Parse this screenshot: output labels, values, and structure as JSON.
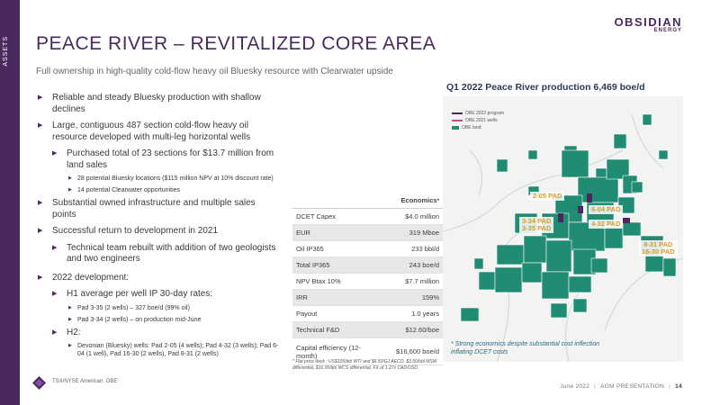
{
  "sidebar": {
    "label": "ASSETS"
  },
  "logo": {
    "main": "OBSIDIAN",
    "sub": "ENERGY"
  },
  "title": "PEACE RIVER – REVITALIZED CORE AREA",
  "subtitle": "Full ownership in high-quality cold-flow heavy oil Bluesky resource with Clearwater upside",
  "bullets": {
    "b1": "Reliable and steady Bluesky production with shallow declines",
    "b2": "Large, contiguous 487 section cold-flow heavy oil resource developed with multi-leg horizontal wells",
    "b2_1": "Purchased total of 23 sections for $13.7 million from land sales",
    "b2_1_1": "28 potential Bluesky locations ($115 million NPV at 10% discount rate)",
    "b2_1_2": "14 potential Clearwater opportunities",
    "b3": "Substantial owned infrastructure and multiple sales points",
    "b4": "Successful return to development in 2021",
    "b4_1": "Technical team rebuilt with addition of two geologists and two engineers",
    "b5": "2022 development:",
    "b5_1": "H1 average per well IP 30-day rates:",
    "b5_1_1": "Pad 3-35 (2 wells) – 327 boe/d (99% oil)",
    "b5_1_2": "Pad 3-34 (2 wells) – on production mid-June",
    "b5_2": "H2:",
    "b5_2_1": "Devonian (Bluesky) wells: Pad 2-05 (4 wells); Pad 4-32 (3 wells); Pad 6-04 (1 well), Pad 16-30 (2 wells), Pad 8-31 (2 wells)"
  },
  "map": {
    "title": "Q1 2022 Peace River production 6,469 boe/d",
    "legend": [
      {
        "label": "OBE 2022 program",
        "color": "#4a2a5e"
      },
      {
        "label": "OBE 2021 wells",
        "color": "#c44a9a"
      },
      {
        "label": "OBE land",
        "color": "#1f8c73"
      }
    ],
    "pads": {
      "p205": "2-05 PAD",
      "p604": "6-04 PAD",
      "p334": "3-34 PAD",
      "p335": "3-35 PAD",
      "p432": "4-32 PAD",
      "p831": "8-31 PAD",
      "p1630": "16-30 PAD"
    }
  },
  "economics": {
    "header": "Economics",
    "header_mark": "*",
    "rows": [
      {
        "label": "DCET Capex",
        "value": "$4.0 million"
      },
      {
        "label": "EUR",
        "value": "319 Mboe"
      },
      {
        "label": "Oil IP365",
        "value": "233 bbl/d"
      },
      {
        "label": "Total IP365",
        "value": "243 boe/d"
      },
      {
        "label": "NPV Btax 10%",
        "value": "$7.7 million"
      },
      {
        "label": "IRR",
        "value": "159%"
      },
      {
        "label": "Payout",
        "value": "1.0 years"
      },
      {
        "label": "Technical F&D",
        "value": "$12.60/boe"
      },
      {
        "label": "Capital efficiency (12-month)",
        "value": "$16,600 boe/d"
      }
    ]
  },
  "footnote_left": "* Flat price deck : US$105/bbl WTI and $6.50/GJ AECO, $3.50/bbl MSW differential, $16.00/bbl WCS differential, FX of 1.27x CAD/USD.",
  "footnote_right": "* Strong economics despite substantial cost inflection inflating DCET costs",
  "footer": {
    "ticker": "TSX/NYSE American: OBE",
    "date": "June 2022",
    "presentation": "AGM PRESENTATION",
    "page": "14"
  }
}
